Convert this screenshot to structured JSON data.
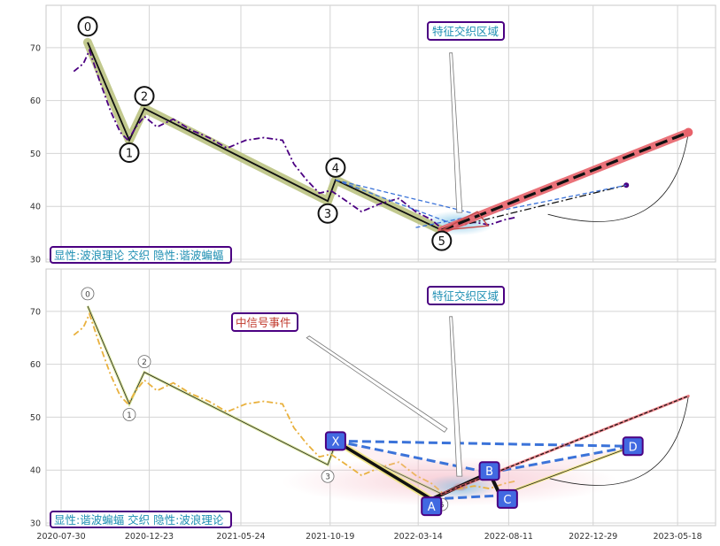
{
  "chart_data": [
    {
      "panel": "top",
      "type": "line",
      "title": "",
      "xlabel": "",
      "ylabel": "",
      "ylim": [
        29.5,
        78
      ],
      "y_ticks": [
        30,
        40,
        50,
        60,
        70
      ],
      "grid": true,
      "price_series": {
        "color": "#4b0082",
        "style": "dash-dot",
        "points": [
          [
            "2020-08-20",
            65.5
          ],
          [
            "2020-09-05",
            67
          ],
          [
            "2020-09-15",
            69.5
          ],
          [
            "2020-10-01",
            64
          ],
          [
            "2020-10-20",
            58
          ],
          [
            "2020-11-05",
            54
          ],
          [
            "2020-11-18",
            52.5
          ],
          [
            "2020-12-01",
            55
          ],
          [
            "2020-12-15",
            57
          ],
          [
            "2021-01-05",
            55
          ],
          [
            "2021-02-01",
            56.5
          ],
          [
            "2021-03-01",
            54.5
          ],
          [
            "2021-04-01",
            53
          ],
          [
            "2021-05-01",
            51
          ],
          [
            "2021-06-01",
            52.5
          ],
          [
            "2021-07-01",
            53
          ],
          [
            "2021-08-01",
            52.5
          ],
          [
            "2021-08-20",
            48
          ],
          [
            "2021-09-10",
            45
          ],
          [
            "2021-10-01",
            42.5
          ],
          [
            "2021-10-20",
            43
          ],
          [
            "2021-11-15",
            41
          ],
          [
            "2021-12-10",
            39
          ],
          [
            "2022-01-10",
            40.5
          ],
          [
            "2022-02-10",
            41.5
          ],
          [
            "2022-03-10",
            39
          ],
          [
            "2022-04-05",
            37.5
          ],
          [
            "2022-04-25",
            35.5
          ],
          [
            "2022-05-20",
            36.5
          ],
          [
            "2022-06-15",
            37
          ],
          [
            "2022-07-10",
            36.5
          ],
          [
            "2022-08-05",
            37.5
          ],
          [
            "2022-08-25",
            38
          ]
        ]
      },
      "wave_points": [
        {
          "label": "0",
          "x": "2020-09-12",
          "y": 71
        },
        {
          "label": "1",
          "x": "2020-11-20",
          "y": 52.5
        },
        {
          "label": "2",
          "x": "2020-12-15",
          "y": 58.5
        },
        {
          "label": "3",
          "x": "2021-10-15",
          "y": 41
        },
        {
          "label": "4",
          "x": "2021-10-28",
          "y": 45
        },
        {
          "label": "5",
          "x": "2022-04-22",
          "y": 35.5
        }
      ],
      "projection": [
        {
          "x": "2022-04-22",
          "y": 35.5
        },
        {
          "x": "2023-06-05",
          "y": 54
        }
      ],
      "projection_alt": [
        {
          "x": "2022-04-22",
          "y": 35.5
        },
        {
          "x": "2023-02-22",
          "y": 44
        }
      ],
      "fib_lines": [
        {
          "from": {
            "x": "2021-10-28",
            "y": 45
          },
          "to": {
            "x": "2022-06-20",
            "y": 38.5
          }
        }
      ],
      "label_box": "显性:波浪理论 交织 隐性:谐波蝙蝠",
      "zone_label": "特征交织区域"
    },
    {
      "panel": "bottom",
      "type": "line",
      "title": "",
      "xlabel": "",
      "ylabel": "",
      "ylim": [
        29.5,
        78
      ],
      "y_ticks": [
        30,
        40,
        50,
        60,
        70
      ],
      "grid": true,
      "price_series": {
        "color": "#e9b13e",
        "style": "dash-dot",
        "points": [
          [
            "2020-08-20",
            65.5
          ],
          [
            "2020-09-05",
            67
          ],
          [
            "2020-09-15",
            69.5
          ],
          [
            "2020-10-01",
            64
          ],
          [
            "2020-10-20",
            58
          ],
          [
            "2020-11-05",
            54
          ],
          [
            "2020-11-18",
            52.5
          ],
          [
            "2020-12-01",
            55
          ],
          [
            "2020-12-15",
            57
          ],
          [
            "2021-01-05",
            55
          ],
          [
            "2021-02-01",
            56.5
          ],
          [
            "2021-03-01",
            54.5
          ],
          [
            "2021-04-01",
            53
          ],
          [
            "2021-05-01",
            51
          ],
          [
            "2021-06-01",
            52.5
          ],
          [
            "2021-07-01",
            53
          ],
          [
            "2021-08-01",
            52.5
          ],
          [
            "2021-08-20",
            48
          ],
          [
            "2021-09-10",
            45
          ],
          [
            "2021-10-01",
            42.5
          ],
          [
            "2021-10-20",
            43
          ],
          [
            "2021-11-15",
            41
          ],
          [
            "2021-12-10",
            39
          ],
          [
            "2022-01-10",
            40.5
          ],
          [
            "2022-02-10",
            41.5
          ],
          [
            "2022-03-10",
            39
          ],
          [
            "2022-04-05",
            37.5
          ],
          [
            "2022-04-25",
            35.5
          ],
          [
            "2022-05-20",
            36.5
          ],
          [
            "2022-06-15",
            37
          ],
          [
            "2022-07-10",
            36.5
          ],
          [
            "2022-08-05",
            37.5
          ],
          [
            "2022-08-25",
            38
          ]
        ]
      },
      "wave_points": [
        {
          "label": "0",
          "x": "2020-09-12",
          "y": 71
        },
        {
          "label": "1",
          "x": "2020-11-20",
          "y": 52.5
        },
        {
          "label": "2",
          "x": "2020-12-15",
          "y": 58.5
        },
        {
          "label": "3",
          "x": "2021-10-15",
          "y": 41
        },
        {
          "label": "4",
          "x": "2021-10-28",
          "y": 45
        },
        {
          "label": "5",
          "x": "2022-04-22",
          "y": 35.5
        }
      ],
      "harmonic_points": [
        {
          "label": "X",
          "x": "2021-10-28",
          "y": 45.5
        },
        {
          "label": "A",
          "x": "2022-04-05",
          "y": 34.5
        },
        {
          "label": "B",
          "x": "2022-07-10",
          "y": 39.5
        },
        {
          "label": "C",
          "x": "2022-07-28",
          "y": 35.2
        },
        {
          "label": "D",
          "x": "2023-03-05",
          "y": 44.5
        }
      ],
      "projection": [
        {
          "x": "2022-04-22",
          "y": 35.5
        },
        {
          "x": "2023-06-05",
          "y": 54
        }
      ],
      "label_box": "显性:谐波蝙蝠 交织 隐性:波浪理论",
      "zone_label": "特征交织区域",
      "event_label": "中信号事件"
    }
  ],
  "x_axis": {
    "type": "date",
    "range": [
      "2020-07-05",
      "2023-07-20"
    ],
    "ticks": [
      "2020-07-30",
      "2020-12-23",
      "2021-05-24",
      "2021-10-19",
      "2022-03-14",
      "2022-08-11",
      "2022-12-29",
      "2023-05-18"
    ]
  },
  "colors": {
    "wave_fill": "#b7c07a",
    "projection": "#e8636b",
    "harmonic_line": "#3b73d9",
    "box_border": "#4b0082",
    "zone_text": "#1f8fb3",
    "event_text": "#c0392b",
    "harmonic_box": "#4169e1"
  }
}
